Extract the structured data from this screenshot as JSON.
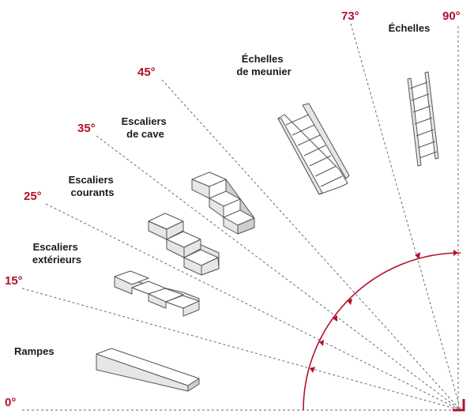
{
  "accent_color": "#b0122c",
  "angles": [
    {
      "value": 0,
      "label": "0°"
    },
    {
      "value": 15,
      "label": "15°"
    },
    {
      "value": 25,
      "label": "25°"
    },
    {
      "value": 35,
      "label": "35°"
    },
    {
      "value": 45,
      "label": "45°"
    },
    {
      "value": 73,
      "label": "73°"
    },
    {
      "value": 90,
      "label": "90°"
    }
  ],
  "categories": {
    "rampes": [
      "Rampes"
    ],
    "escaliers_exterieurs": [
      "Escaliers",
      "extérieurs"
    ],
    "escaliers_courants": [
      "Escaliers",
      "courants"
    ],
    "escaliers_de_cave": [
      "Escaliers",
      "de cave"
    ],
    "echelles_de_meunier": [
      "Échelles",
      "de meunier"
    ],
    "echelles": [
      "Échelles"
    ]
  }
}
